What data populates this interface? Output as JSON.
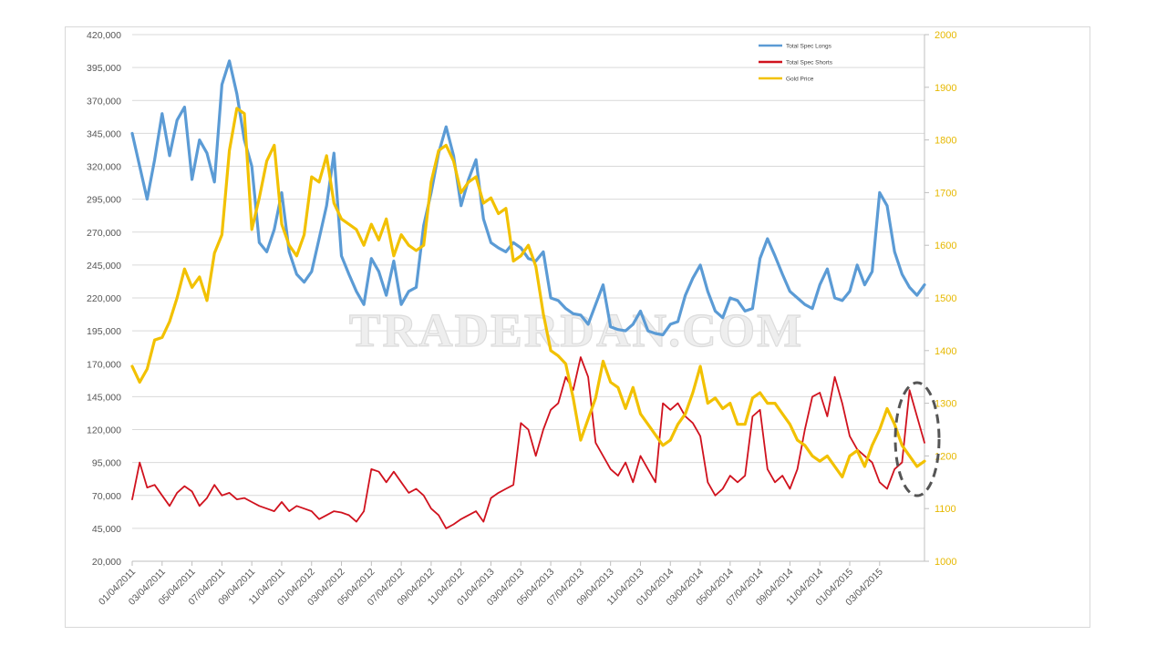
{
  "watermark": "TRADERDAN.COM",
  "chart_data": {
    "type": "line",
    "title": "",
    "xlabel": "",
    "ylabel": "",
    "y_left_lim": [
      20000,
      420000
    ],
    "y_right_lim": [
      1000,
      2000
    ],
    "y_left_ticks": [
      "420,000",
      "395,000",
      "370,000",
      "345,000",
      "320,000",
      "295,000",
      "270,000",
      "245,000",
      "220,000",
      "195,000",
      "170,000",
      "145,000",
      "120,000",
      "95,000",
      "70,000",
      "45,000",
      "20,000"
    ],
    "y_right_ticks": [
      "2000",
      "1900",
      "1800",
      "1700",
      "1600",
      "1500",
      "1400",
      "1300",
      "1200",
      "1100",
      "1000"
    ],
    "x_ticks": [
      "01/04/2011",
      "03/04/2011",
      "05/04/2011",
      "07/04/2011",
      "09/04/2011",
      "11/04/2011",
      "01/04/2012",
      "03/04/2012",
      "05/04/2012",
      "07/04/2012",
      "09/04/2012",
      "11/04/2012",
      "01/04/2013",
      "03/04/2013",
      "05/04/2013",
      "07/04/2013",
      "09/04/2013",
      "11/04/2013",
      "01/04/2014",
      "03/04/2014",
      "05/04/2014",
      "07/04/2014",
      "09/04/2014",
      "11/04/2014",
      "01/04/2015",
      "03/04/2015"
    ],
    "x_range_months": [
      0,
      53
    ],
    "legend_position": "top-right",
    "annotation": "dashed ellipse around latest data (May 2015)",
    "series": [
      {
        "name": "Total Spec Longs",
        "axis": "left",
        "color": "#5b9bd5",
        "x": [
          0,
          0.5,
          1,
          1.5,
          2,
          2.5,
          3,
          3.5,
          4,
          4.5,
          5,
          5.5,
          6,
          6.5,
          7,
          7.5,
          8,
          8.5,
          9,
          9.5,
          10,
          10.5,
          11,
          11.5,
          12,
          12.5,
          13,
          13.5,
          14,
          14.5,
          15,
          15.5,
          16,
          16.5,
          17,
          17.5,
          18,
          18.5,
          19,
          19.5,
          20,
          20.5,
          21,
          21.5,
          22,
          22.5,
          23,
          23.5,
          24,
          24.5,
          25,
          25.5,
          26,
          26.5,
          27,
          27.5,
          28,
          28.5,
          29,
          29.5,
          30,
          30.5,
          31,
          31.5,
          32,
          32.5,
          33,
          33.5,
          34,
          34.5,
          35,
          35.5,
          36,
          36.5,
          37,
          37.5,
          38,
          38.5,
          39,
          39.5,
          40,
          40.5,
          41,
          41.5,
          42,
          42.5,
          43,
          43.5,
          44,
          44.5,
          45,
          45.5,
          46,
          46.5,
          47,
          47.5,
          48,
          48.5,
          49,
          49.5,
          50,
          50.5,
          51,
          51.5,
          52,
          52.5,
          53
        ],
        "values": [
          345000,
          320000,
          295000,
          325000,
          360000,
          328000,
          355000,
          365000,
          310000,
          340000,
          330000,
          308000,
          382000,
          400000,
          375000,
          340000,
          320000,
          262000,
          255000,
          272000,
          300000,
          255000,
          238000,
          232000,
          240000,
          265000,
          290000,
          330000,
          252000,
          238000,
          225000,
          215000,
          250000,
          240000,
          222000,
          248000,
          215000,
          225000,
          228000,
          275000,
          300000,
          330000,
          350000,
          328000,
          290000,
          310000,
          325000,
          280000,
          262000,
          258000,
          255000,
          262000,
          258000,
          250000,
          248000,
          255000,
          220000,
          218000,
          212000,
          208000,
          207000,
          200000,
          215000,
          230000,
          198000,
          196000,
          195000,
          200000,
          210000,
          195000,
          193000,
          192000,
          200000,
          202000,
          222000,
          235000,
          245000,
          225000,
          210000,
          205000,
          220000,
          218000,
          210000,
          212000,
          250000,
          265000,
          252000,
          238000,
          225000,
          220000,
          215000,
          212000,
          230000,
          242000,
          220000,
          218000,
          225000,
          245000,
          230000,
          240000,
          300000,
          290000,
          255000,
          238000,
          228000,
          222000,
          230000
        ]
      },
      {
        "name": "Total Spec Shorts",
        "axis": "left",
        "color": "#d0121e",
        "x": [
          0,
          0.5,
          1,
          1.5,
          2,
          2.5,
          3,
          3.5,
          4,
          4.5,
          5,
          5.5,
          6,
          6.5,
          7,
          7.5,
          8,
          8.5,
          9,
          9.5,
          10,
          10.5,
          11,
          11.5,
          12,
          12.5,
          13,
          13.5,
          14,
          14.5,
          15,
          15.5,
          16,
          16.5,
          17,
          17.5,
          18,
          18.5,
          19,
          19.5,
          20,
          20.5,
          21,
          21.5,
          22,
          22.5,
          23,
          23.5,
          24,
          24.5,
          25,
          25.5,
          26,
          26.5,
          27,
          27.5,
          28,
          28.5,
          29,
          29.5,
          30,
          30.5,
          31,
          31.5,
          32,
          32.5,
          33,
          33.5,
          34,
          34.5,
          35,
          35.5,
          36,
          36.5,
          37,
          37.5,
          38,
          38.5,
          39,
          39.5,
          40,
          40.5,
          41,
          41.5,
          42,
          42.5,
          43,
          43.5,
          44,
          44.5,
          45,
          45.5,
          46,
          46.5,
          47,
          47.5,
          48,
          48.5,
          49,
          49.5,
          50,
          50.5,
          51,
          51.5,
          52,
          52.5,
          53
        ],
        "values": [
          67000,
          95000,
          76000,
          78000,
          70000,
          62000,
          72000,
          77000,
          73000,
          62000,
          68000,
          78000,
          70000,
          72000,
          67000,
          68000,
          65000,
          62000,
          60000,
          58000,
          65000,
          58000,
          62000,
          60000,
          58000,
          52000,
          55000,
          58000,
          57000,
          55000,
          50000,
          58000,
          90000,
          88000,
          80000,
          88000,
          80000,
          72000,
          75000,
          70000,
          60000,
          55000,
          45000,
          48000,
          52000,
          55000,
          58000,
          50000,
          68000,
          72000,
          75000,
          78000,
          125000,
          120000,
          100000,
          120000,
          135000,
          140000,
          160000,
          150000,
          175000,
          160000,
          110000,
          100000,
          90000,
          85000,
          95000,
          80000,
          100000,
          90000,
          80000,
          140000,
          135000,
          140000,
          130000,
          125000,
          115000,
          80000,
          70000,
          75000,
          85000,
          80000,
          85000,
          130000,
          135000,
          90000,
          80000,
          85000,
          75000,
          90000,
          120000,
          145000,
          148000,
          130000,
          160000,
          140000,
          115000,
          105000,
          100000,
          95000,
          80000,
          75000,
          90000,
          95000,
          150000,
          130000,
          110000
        ]
      },
      {
        "name": "Gold Price",
        "axis": "right",
        "color": "#f2c100",
        "x": [
          0,
          0.5,
          1,
          1.5,
          2,
          2.5,
          3,
          3.5,
          4,
          4.5,
          5,
          5.5,
          6,
          6.5,
          7,
          7.5,
          8,
          8.5,
          9,
          9.5,
          10,
          10.5,
          11,
          11.5,
          12,
          12.5,
          13,
          13.5,
          14,
          14.5,
          15,
          15.5,
          16,
          16.5,
          17,
          17.5,
          18,
          18.5,
          19,
          19.5,
          20,
          20.5,
          21,
          21.5,
          22,
          22.5,
          23,
          23.5,
          24,
          24.5,
          25,
          25.5,
          26,
          26.5,
          27,
          27.5,
          28,
          28.5,
          29,
          29.5,
          30,
          30.5,
          31,
          31.5,
          32,
          32.5,
          33,
          33.5,
          34,
          34.5,
          35,
          35.5,
          36,
          36.5,
          37,
          37.5,
          38,
          38.5,
          39,
          39.5,
          40,
          40.5,
          41,
          41.5,
          42,
          42.5,
          43,
          43.5,
          44,
          44.5,
          45,
          45.5,
          46,
          46.5,
          47,
          47.5,
          48,
          48.5,
          49,
          49.5,
          50,
          50.5,
          51,
          51.5,
          52,
          52.5,
          53
        ],
        "values": [
          1370,
          1340,
          1365,
          1420,
          1425,
          1455,
          1500,
          1555,
          1520,
          1540,
          1495,
          1585,
          1620,
          1780,
          1860,
          1850,
          1630,
          1690,
          1760,
          1790,
          1640,
          1600,
          1580,
          1620,
          1730,
          1720,
          1770,
          1680,
          1650,
          1640,
          1630,
          1600,
          1640,
          1610,
          1650,
          1580,
          1620,
          1600,
          1590,
          1600,
          1720,
          1780,
          1790,
          1760,
          1700,
          1720,
          1730,
          1680,
          1690,
          1660,
          1670,
          1570,
          1580,
          1600,
          1560,
          1470,
          1400,
          1390,
          1375,
          1310,
          1230,
          1270,
          1310,
          1380,
          1340,
          1330,
          1290,
          1330,
          1280,
          1260,
          1240,
          1220,
          1230,
          1260,
          1280,
          1320,
          1370,
          1300,
          1310,
          1290,
          1300,
          1260,
          1260,
          1310,
          1320,
          1300,
          1300,
          1280,
          1260,
          1230,
          1220,
          1200,
          1190,
          1200,
          1180,
          1160,
          1200,
          1210,
          1180,
          1220,
          1250,
          1290,
          1260,
          1220,
          1200,
          1180,
          1190
        ]
      }
    ]
  }
}
